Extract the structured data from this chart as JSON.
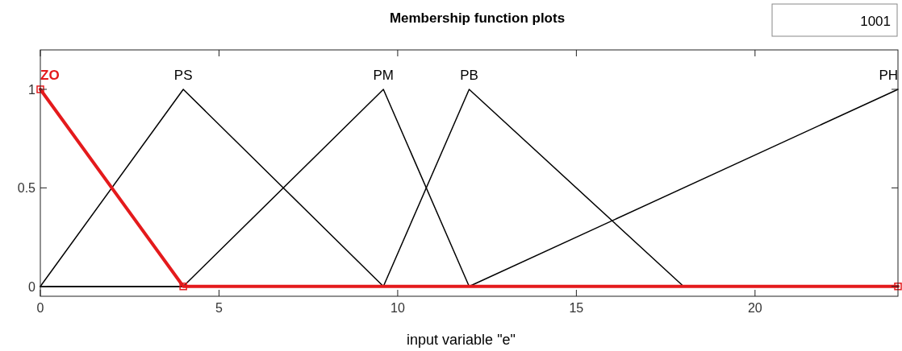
{
  "chart_data": {
    "type": "line",
    "title": "Membership function plots",
    "xlabel": "input variable \"e\"",
    "annotations": [
      "1001"
    ],
    "xlim": [
      0,
      24
    ],
    "ylim": [
      -0.05,
      1.2
    ],
    "xticks": [
      0,
      5,
      10,
      15,
      20
    ],
    "yticks": [
      0,
      0.5,
      1
    ],
    "grid": false,
    "series": [
      {
        "name": "PS",
        "color": "#000000",
        "x": [
          0,
          4,
          9.6,
          24
        ],
        "values": [
          0,
          1,
          0,
          0
        ]
      },
      {
        "name": "PM",
        "color": "#000000",
        "x": [
          0,
          4,
          9.6,
          12,
          24
        ],
        "values": [
          0,
          0,
          1,
          0,
          0
        ]
      },
      {
        "name": "PB",
        "color": "#000000",
        "x": [
          0,
          9.6,
          12,
          18,
          24
        ],
        "values": [
          0,
          0,
          1,
          0,
          0
        ]
      },
      {
        "name": "PH",
        "color": "#000000",
        "x": [
          0,
          12,
          24
        ],
        "values": [
          0,
          0,
          1
        ]
      },
      {
        "name": "ZO",
        "color": "#e41a1c",
        "x": [
          0,
          4,
          24
        ],
        "values": [
          1,
          0,
          0
        ],
        "marker": "square"
      }
    ]
  }
}
